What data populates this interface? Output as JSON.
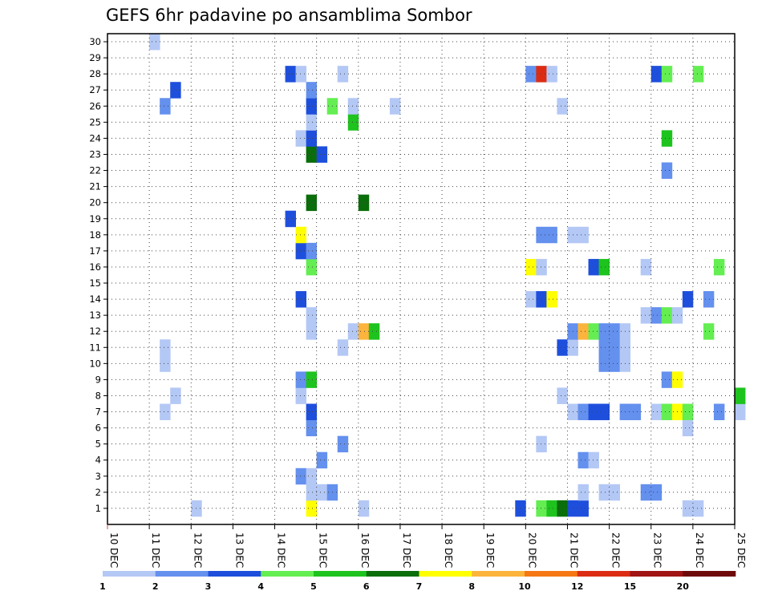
{
  "chart_data": {
    "type": "heatmap",
    "title": "GEFS 6hr padavine po ansamblima Sombor",
    "x_tick_labels": [
      "10 DEC",
      "11 DEC",
      "12 DEC",
      "13 DEC",
      "14 DEC",
      "15 DEC",
      "16 DEC",
      "17 DEC",
      "18 DEC",
      "19 DEC",
      "20 DEC",
      "21 DEC",
      "22 DEC",
      "23 DEC",
      "24 DEC",
      "25 DEC"
    ],
    "y_tick_labels": [
      "1",
      "2",
      "3",
      "4",
      "5",
      "6",
      "7",
      "8",
      "9",
      "10",
      "11",
      "12",
      "13",
      "14",
      "15",
      "16",
      "17",
      "18",
      "19",
      "20",
      "21",
      "22",
      "23",
      "24",
      "25",
      "26",
      "27",
      "28",
      "29",
      "30"
    ],
    "time_step_hours": 6,
    "x_range_steps": [
      0,
      60
    ],
    "y_range": [
      1,
      30
    ],
    "grid": true,
    "colorbar": {
      "position": "bottom",
      "levels": [
        "1",
        "2",
        "3",
        "4",
        "5",
        "6",
        "7",
        "8",
        "10",
        "12",
        "15",
        "20"
      ],
      "colors": [
        "#b4c8f5",
        "#6490ee",
        "#1e4fdc",
        "#64ee52",
        "#1ec31e",
        "#0a6e0a",
        "#ffff00",
        "#fcb43c",
        "#f57814",
        "#dc2d14",
        "#a01414",
        "#6e0a0a"
      ]
    },
    "cells": [
      {
        "step": 4,
        "member": 30,
        "cls": 0
      },
      {
        "step": 8,
        "member": 1,
        "cls": 0
      },
      {
        "step": 19,
        "member": 1,
        "cls": 6
      },
      {
        "step": 24,
        "member": 1,
        "cls": 0
      },
      {
        "step": 39,
        "member": 1,
        "cls": 2
      },
      {
        "step": 41,
        "member": 1,
        "cls": 3
      },
      {
        "step": 42,
        "member": 1,
        "cls": 4
      },
      {
        "step": 43,
        "member": 1,
        "cls": 5
      },
      {
        "step": 44,
        "member": 1,
        "cls": 2
      },
      {
        "step": 45,
        "member": 1,
        "cls": 2
      },
      {
        "step": 55,
        "member": 1,
        "cls": 0
      },
      {
        "step": 56,
        "member": 1,
        "cls": 0
      },
      {
        "step": 19,
        "member": 2,
        "cls": 0
      },
      {
        "step": 20,
        "member": 2,
        "cls": 0
      },
      {
        "step": 21,
        "member": 2,
        "cls": 1
      },
      {
        "step": 45,
        "member": 2,
        "cls": 0
      },
      {
        "step": 47,
        "member": 2,
        "cls": 0
      },
      {
        "step": 48,
        "member": 2,
        "cls": 0
      },
      {
        "step": 51,
        "member": 2,
        "cls": 1
      },
      {
        "step": 52,
        "member": 2,
        "cls": 1
      },
      {
        "step": 18,
        "member": 3,
        "cls": 1
      },
      {
        "step": 19,
        "member": 3,
        "cls": 0
      },
      {
        "step": 20,
        "member": 4,
        "cls": 1
      },
      {
        "step": 45,
        "member": 4,
        "cls": 1
      },
      {
        "step": 46,
        "member": 4,
        "cls": 0
      },
      {
        "step": 22,
        "member": 5,
        "cls": 1
      },
      {
        "step": 41,
        "member": 5,
        "cls": 0
      },
      {
        "step": 19,
        "member": 6,
        "cls": 1
      },
      {
        "step": 55,
        "member": 6,
        "cls": 0
      },
      {
        "step": 5,
        "member": 7,
        "cls": 0
      },
      {
        "step": 19,
        "member": 7,
        "cls": 2
      },
      {
        "step": 44,
        "member": 7,
        "cls": 0
      },
      {
        "step": 45,
        "member": 7,
        "cls": 1
      },
      {
        "step": 46,
        "member": 7,
        "cls": 2
      },
      {
        "step": 47,
        "member": 7,
        "cls": 2
      },
      {
        "step": 49,
        "member": 7,
        "cls": 1
      },
      {
        "step": 50,
        "member": 7,
        "cls": 1
      },
      {
        "step": 52,
        "member": 7,
        "cls": 0
      },
      {
        "step": 53,
        "member": 7,
        "cls": 3
      },
      {
        "step": 54,
        "member": 7,
        "cls": 6
      },
      {
        "step": 55,
        "member": 7,
        "cls": 3
      },
      {
        "step": 58,
        "member": 7,
        "cls": 1
      },
      {
        "step": 60,
        "member": 7,
        "cls": 0
      },
      {
        "step": 6,
        "member": 8,
        "cls": 0
      },
      {
        "step": 18,
        "member": 8,
        "cls": 0
      },
      {
        "step": 43,
        "member": 8,
        "cls": 0
      },
      {
        "step": 60,
        "member": 8,
        "cls": 4
      },
      {
        "step": 18,
        "member": 9,
        "cls": 1
      },
      {
        "step": 19,
        "member": 9,
        "cls": 4
      },
      {
        "step": 53,
        "member": 9,
        "cls": 1
      },
      {
        "step": 54,
        "member": 9,
        "cls": 6
      },
      {
        "step": 5,
        "member": 10,
        "cls": 0
      },
      {
        "step": 47,
        "member": 10,
        "cls": 1
      },
      {
        "step": 48,
        "member": 10,
        "cls": 1
      },
      {
        "step": 49,
        "member": 10,
        "cls": 0
      },
      {
        "step": 5,
        "member": 11,
        "cls": 0
      },
      {
        "step": 22,
        "member": 11,
        "cls": 0
      },
      {
        "step": 43,
        "member": 11,
        "cls": 2
      },
      {
        "step": 44,
        "member": 11,
        "cls": 0
      },
      {
        "step": 47,
        "member": 11,
        "cls": 1
      },
      {
        "step": 48,
        "member": 11,
        "cls": 1
      },
      {
        "step": 49,
        "member": 11,
        "cls": 0
      },
      {
        "step": 19,
        "member": 12,
        "cls": 0
      },
      {
        "step": 23,
        "member": 12,
        "cls": 0
      },
      {
        "step": 24,
        "member": 12,
        "cls": 7
      },
      {
        "step": 25,
        "member": 12,
        "cls": 4
      },
      {
        "step": 44,
        "member": 12,
        "cls": 1
      },
      {
        "step": 45,
        "member": 12,
        "cls": 7
      },
      {
        "step": 46,
        "member": 12,
        "cls": 3
      },
      {
        "step": 47,
        "member": 12,
        "cls": 1
      },
      {
        "step": 48,
        "member": 12,
        "cls": 1
      },
      {
        "step": 49,
        "member": 12,
        "cls": 0
      },
      {
        "step": 57,
        "member": 12,
        "cls": 3
      },
      {
        "step": 19,
        "member": 13,
        "cls": 0
      },
      {
        "step": 51,
        "member": 13,
        "cls": 0
      },
      {
        "step": 52,
        "member": 13,
        "cls": 1
      },
      {
        "step": 53,
        "member": 13,
        "cls": 3
      },
      {
        "step": 54,
        "member": 13,
        "cls": 0
      },
      {
        "step": 18,
        "member": 14,
        "cls": 2
      },
      {
        "step": 40,
        "member": 14,
        "cls": 0
      },
      {
        "step": 41,
        "member": 14,
        "cls": 2
      },
      {
        "step": 42,
        "member": 14,
        "cls": 6
      },
      {
        "step": 55,
        "member": 14,
        "cls": 2
      },
      {
        "step": 57,
        "member": 14,
        "cls": 1
      },
      {
        "step": 19,
        "member": 16,
        "cls": 3
      },
      {
        "step": 40,
        "member": 16,
        "cls": 6
      },
      {
        "step": 41,
        "member": 16,
        "cls": 0
      },
      {
        "step": 46,
        "member": 16,
        "cls": 2
      },
      {
        "step": 47,
        "member": 16,
        "cls": 4
      },
      {
        "step": 51,
        "member": 16,
        "cls": 0
      },
      {
        "step": 58,
        "member": 16,
        "cls": 3
      },
      {
        "step": 18,
        "member": 17,
        "cls": 2
      },
      {
        "step": 19,
        "member": 17,
        "cls": 1
      },
      {
        "step": 18,
        "member": 18,
        "cls": 6
      },
      {
        "step": 41,
        "member": 18,
        "cls": 1
      },
      {
        "step": 42,
        "member": 18,
        "cls": 1
      },
      {
        "step": 44,
        "member": 18,
        "cls": 0
      },
      {
        "step": 45,
        "member": 18,
        "cls": 0
      },
      {
        "step": 17,
        "member": 19,
        "cls": 2
      },
      {
        "step": 19,
        "member": 20,
        "cls": 5
      },
      {
        "step": 24,
        "member": 20,
        "cls": 5
      },
      {
        "step": 53,
        "member": 22,
        "cls": 1
      },
      {
        "step": 19,
        "member": 23,
        "cls": 5
      },
      {
        "step": 20,
        "member": 23,
        "cls": 2
      },
      {
        "step": 18,
        "member": 24,
        "cls": 0
      },
      {
        "step": 19,
        "member": 24,
        "cls": 2
      },
      {
        "step": 53,
        "member": 24,
        "cls": 4
      },
      {
        "step": 19,
        "member": 25,
        "cls": 0
      },
      {
        "step": 23,
        "member": 25,
        "cls": 4
      },
      {
        "step": 5,
        "member": 26,
        "cls": 1
      },
      {
        "step": 19,
        "member": 26,
        "cls": 2
      },
      {
        "step": 21,
        "member": 26,
        "cls": 3
      },
      {
        "step": 23,
        "member": 26,
        "cls": 0
      },
      {
        "step": 27,
        "member": 26,
        "cls": 0
      },
      {
        "step": 43,
        "member": 26,
        "cls": 0
      },
      {
        "step": 6,
        "member": 27,
        "cls": 2
      },
      {
        "step": 19,
        "member": 27,
        "cls": 1
      },
      {
        "step": 17,
        "member": 28,
        "cls": 2
      },
      {
        "step": 18,
        "member": 28,
        "cls": 0
      },
      {
        "step": 22,
        "member": 28,
        "cls": 0
      },
      {
        "step": 40,
        "member": 28,
        "cls": 1
      },
      {
        "step": 41,
        "member": 28,
        "cls": 9
      },
      {
        "step": 42,
        "member": 28,
        "cls": 0
      },
      {
        "step": 52,
        "member": 28,
        "cls": 2
      },
      {
        "step": 53,
        "member": 28,
        "cls": 3
      },
      {
        "step": 56,
        "member": 28,
        "cls": 3
      }
    ]
  }
}
